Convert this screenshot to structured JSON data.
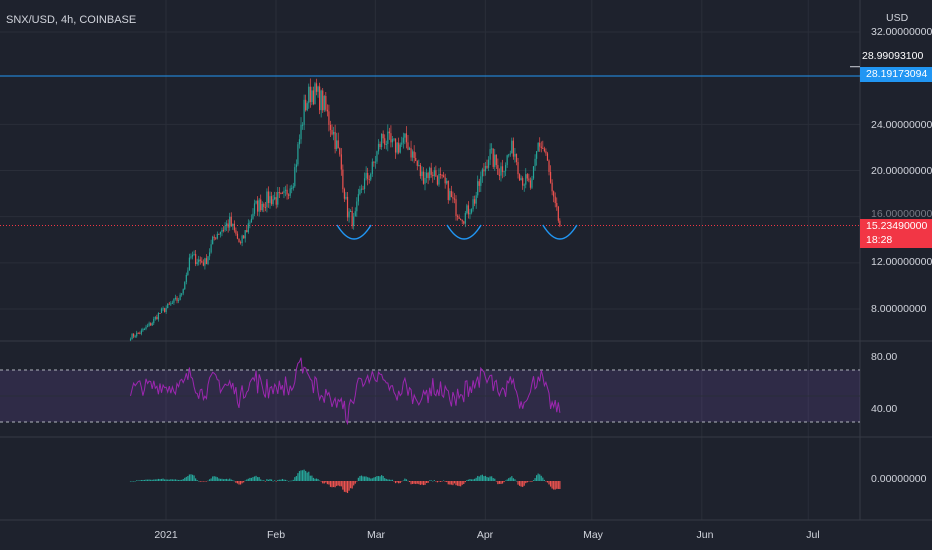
{
  "header": {
    "title": "SNX/USD, 4h, COINBASE",
    "currency": "USD"
  },
  "colors": {
    "background": "#1e222d",
    "grid": "#2a2e39",
    "up": "#26a69a",
    "down": "#ef5350",
    "resistance": "#2196f3",
    "support": "#f23645",
    "rsi": "#9c27b0",
    "rsi_band": "#7e57c2",
    "arc": "#2196f3"
  },
  "price_axis": {
    "ticks": [
      "32.00000000",
      "24.00000000",
      "20.00000000",
      "16.00000000",
      "12.00000000",
      "8.00000000"
    ],
    "high_label": "28.99093100",
    "resistance_label": "28.19173094",
    "current_label": "15.23490000",
    "countdown": "18:28"
  },
  "rsi_axis": {
    "ticks": [
      "80.00",
      "40.00"
    ]
  },
  "macd_axis": {
    "ticks": [
      "0.00000000"
    ]
  },
  "time_axis": {
    "ticks": [
      "2021",
      "Feb",
      "Mar",
      "Apr",
      "May",
      "Jun",
      "Jul"
    ]
  },
  "chart_data": {
    "type": "candlestick",
    "symbol": "SNX/USD",
    "interval": "4h",
    "exchange": "COINBASE",
    "ylim": [
      5.5,
      33
    ],
    "y_ticks": [
      8,
      12,
      16,
      20,
      24,
      32
    ],
    "x_ticks": [
      "2021",
      "Feb",
      "Mar",
      "Apr",
      "May",
      "Jun",
      "Jul"
    ],
    "close_path": [
      [
        "2020-12-22",
        5.6
      ],
      [
        "2020-12-25",
        6.0
      ],
      [
        "2020-12-28",
        6.8
      ],
      [
        "2020-12-30",
        7.6
      ],
      [
        "2021-01-02",
        8.3
      ],
      [
        "2021-01-05",
        9.0
      ],
      [
        "2021-01-08",
        12.5
      ],
      [
        "2021-01-12",
        12.0
      ],
      [
        "2021-01-15",
        14.5
      ],
      [
        "2021-01-19",
        15.5
      ],
      [
        "2021-01-22",
        13.5
      ],
      [
        "2021-01-26",
        16.8
      ],
      [
        "2021-01-30",
        17.6
      ],
      [
        "2021-02-03",
        17.5
      ],
      [
        "2021-02-06",
        19.5
      ],
      [
        "2021-02-09",
        25.5
      ],
      [
        "2021-02-11",
        27.0
      ],
      [
        "2021-02-14",
        26.0
      ],
      [
        "2021-02-17",
        23.5
      ],
      [
        "2021-02-19",
        21.0
      ],
      [
        "2021-02-21",
        16.5
      ],
      [
        "2021-02-23",
        15.5
      ],
      [
        "2021-02-25",
        18.5
      ],
      [
        "2021-02-28",
        20.0
      ],
      [
        "2021-03-03",
        23.0
      ],
      [
        "2021-03-06",
        22.0
      ],
      [
        "2021-03-10",
        22.5
      ],
      [
        "2021-03-14",
        19.5
      ],
      [
        "2021-03-17",
        20.0
      ],
      [
        "2021-03-21",
        18.5
      ],
      [
        "2021-03-24",
        16.5
      ],
      [
        "2021-03-26",
        16.0
      ],
      [
        "2021-03-29",
        17.5
      ],
      [
        "2021-04-02",
        21.5
      ],
      [
        "2021-04-05",
        20.0
      ],
      [
        "2021-04-09",
        22.0
      ],
      [
        "2021-04-11",
        19.5
      ],
      [
        "2021-04-14",
        18.5
      ],
      [
        "2021-04-16",
        22.5
      ],
      [
        "2021-04-18",
        21.5
      ],
      [
        "2021-04-20",
        17.5
      ],
      [
        "2021-04-22",
        15.23
      ]
    ],
    "levels": {
      "resistance": 28.19173094,
      "support": 15.2349,
      "high": 28.990931
    },
    "rsi": {
      "upper_band": 70,
      "lower_band": 30,
      "ticks": [
        80,
        40
      ]
    },
    "macd": {
      "zero_tick": 0
    },
    "pattern": "triple bottom arcs at late Feb, late Mar, late Apr"
  }
}
